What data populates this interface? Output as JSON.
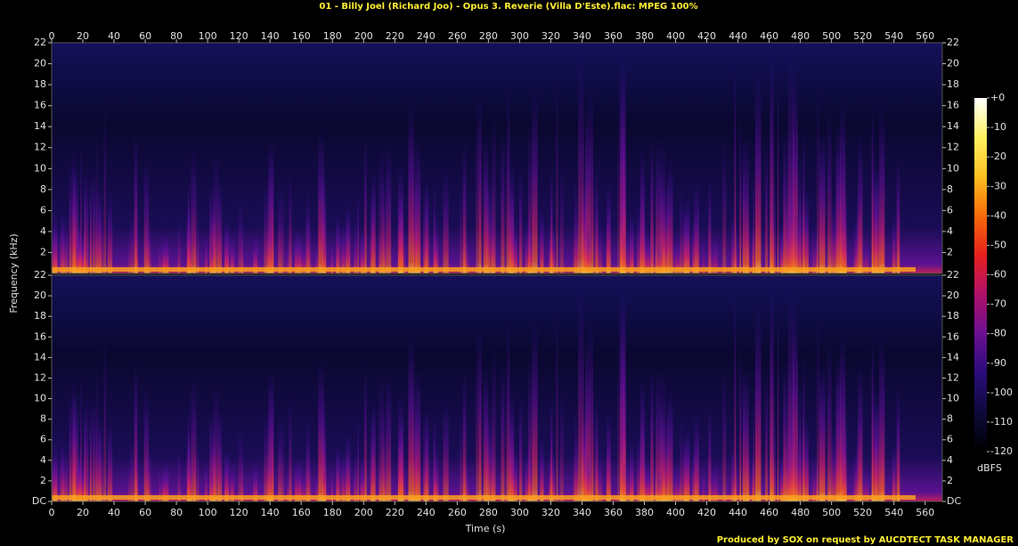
{
  "chart_data": {
    "type": "spectrogram",
    "title": "01 - Billy Joel (Richard Joo) - Opus 3. Reverie (Villa D'Este).flac: MPEG 100%",
    "x_label": "Time (s)",
    "y_label": "Frequency (kHz)",
    "xlim": [
      0,
      571
    ],
    "xticks": [
      0,
      20,
      40,
      60,
      80,
      100,
      120,
      140,
      160,
      180,
      200,
      220,
      240,
      260,
      280,
      300,
      320,
      340,
      360,
      380,
      400,
      420,
      440,
      460,
      480,
      500,
      520,
      540,
      560
    ],
    "channels": [
      {
        "ylim": [
          0,
          22
        ],
        "yticks": [
          2,
          4,
          6,
          8,
          10,
          12,
          14,
          16,
          18,
          20,
          22
        ]
      },
      {
        "ylim": [
          0,
          22
        ],
        "yticks": [
          {
            "value": 0,
            "label": "DC"
          },
          2,
          4,
          6,
          8,
          10,
          12,
          14,
          16,
          18,
          20,
          22
        ]
      }
    ],
    "colorbar": {
      "label": "dBFS",
      "lim": [
        -120,
        0
      ],
      "ticks": [
        {
          "value": 0,
          "label": "+0"
        },
        -10,
        -20,
        -30,
        -40,
        -50,
        -60,
        -70,
        -80,
        -90,
        -100,
        -110,
        -120
      ],
      "colors": [
        "#000000",
        "#0d0a3a",
        "#2a0c7a",
        "#6a1090",
        "#b0106a",
        "#e8201e",
        "#f86a0a",
        "#fcc020",
        "#fff060",
        "#ffffff"
      ]
    },
    "footer": "Produced by SOX on request by AUCDTECT TASK MANAGER"
  }
}
